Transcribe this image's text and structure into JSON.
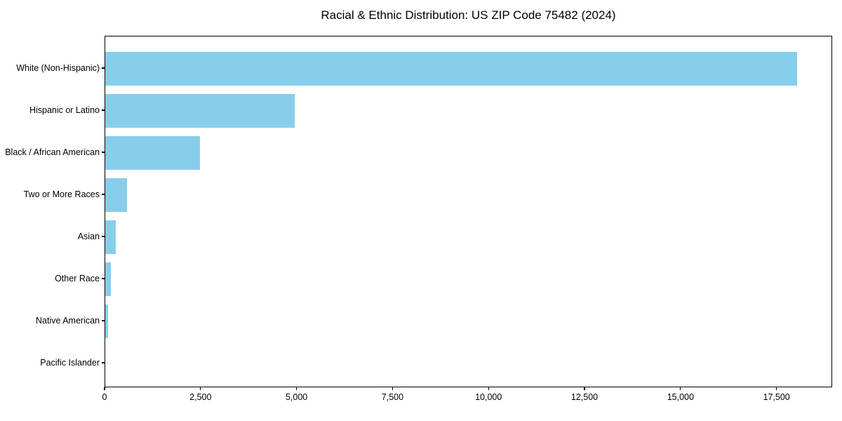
{
  "chart_data": {
    "type": "bar",
    "orientation": "horizontal",
    "title": "Racial & Ethnic Distribution: US ZIP Code 75482 (2024)",
    "categories": [
      "White (Non-Hispanic)",
      "Hispanic or Latino",
      "Black / African American",
      "Two or More Races",
      "Asian",
      "Other Race",
      "Native American",
      "Pacific Islander"
    ],
    "values": [
      18025,
      4940,
      2470,
      565,
      275,
      145,
      80,
      0
    ],
    "xlabel": "",
    "ylabel": "",
    "xlim": [
      0,
      18950
    ],
    "x_ticks": [
      0,
      2500,
      5000,
      7500,
      10000,
      12500,
      15000,
      17500
    ],
    "x_tick_labels": [
      "0",
      "2,500",
      "5,000",
      "7,500",
      "10,000",
      "12,500",
      "15,000",
      "17,500"
    ],
    "bar_color": "#87CEEB",
    "axis_color": "#000000",
    "grid": false,
    "legend": null
  }
}
